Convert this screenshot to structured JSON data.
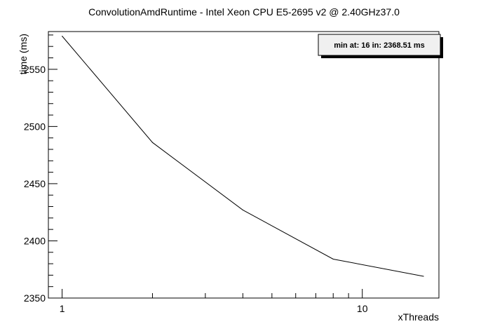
{
  "chart_data": {
    "type": "line",
    "title": "ConvolutionAmdRuntime - Intel Xeon CPU E5-2695 v2 @ 2.40GHz37.0",
    "xlabel": "xThreads",
    "ylabel": "time (ms)",
    "x_scale": "log",
    "xlim": [
      0.9,
      18
    ],
    "ylim": [
      2350,
      2583
    ],
    "grid": false,
    "x_tick_labels": [
      {
        "value": 1,
        "label": "1"
      },
      {
        "value": 10,
        "label": "10"
      }
    ],
    "y_tick_labels": [
      {
        "value": 2350,
        "label": "2350"
      },
      {
        "value": 2400,
        "label": "2400"
      },
      {
        "value": 2450,
        "label": "2450"
      },
      {
        "value": 2500,
        "label": "2500"
      },
      {
        "value": 2550,
        "label": "2550"
      }
    ],
    "series": [
      {
        "x": [
          1,
          2,
          4,
          8,
          16
        ],
        "y": [
          2579,
          2486,
          2427,
          2384,
          2369
        ],
        "color": "#000000"
      }
    ],
    "annotation": "min at: 16 in: 2368.51 ms",
    "legend_position": "top-right"
  }
}
